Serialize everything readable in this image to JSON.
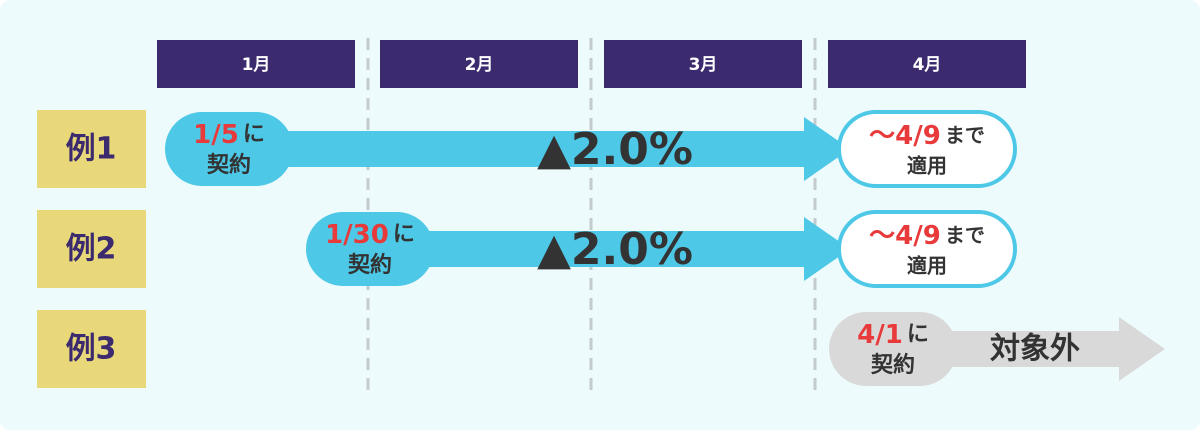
{
  "months": [
    "1月",
    "2月",
    "3月",
    "4月"
  ],
  "rows": [
    {
      "label": "例1",
      "start": {
        "date": "1/5",
        "suffix": "に",
        "action": "契約"
      },
      "arrow_label": "▲2.0%",
      "end": {
        "date": "〜4/9",
        "suffix": "まで",
        "action": "適用"
      }
    },
    {
      "label": "例2",
      "start": {
        "date": "1/30",
        "suffix": "に",
        "action": "契約"
      },
      "arrow_label": "▲2.0%",
      "end": {
        "date": "〜4/9",
        "suffix": "まで",
        "action": "適用"
      }
    },
    {
      "label": "例3",
      "start": {
        "date": "4/1",
        "suffix": "に",
        "action": "契約"
      },
      "arrow_label": "対象外"
    }
  ]
}
